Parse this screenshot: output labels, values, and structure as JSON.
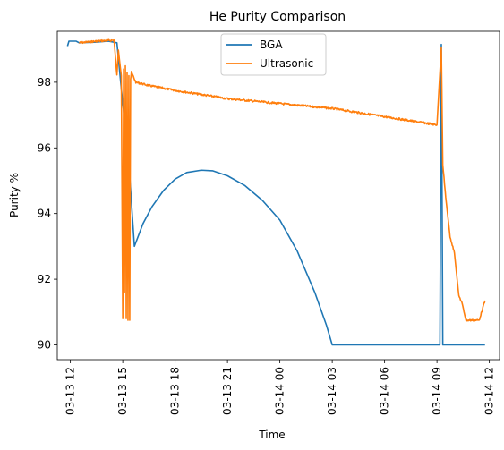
{
  "chart_data": {
    "type": "line",
    "title": "He Purity Comparison",
    "xlabel": "Time",
    "ylabel": "Purity %",
    "xlim": [
      "2024-03-13T11:15",
      "2024-03-14T12:35"
    ],
    "ylim": [
      89.55,
      99.55
    ],
    "x_ticks": [
      "03-13 12",
      "03-13 15",
      "03-13 18",
      "03-13 21",
      "03-14 00",
      "03-14 03",
      "03-14 06",
      "03-14 09",
      "03-14 12"
    ],
    "y_ticks": [
      90,
      92,
      94,
      96,
      98
    ],
    "grid": false,
    "legend_position": "top-center",
    "series": [
      {
        "name": "BGA",
        "color": "#1f77b4",
        "points": [
          [
            "2024-03-13T11:50",
            99.1
          ],
          [
            "2024-03-13T11:55",
            99.25
          ],
          [
            "2024-03-13T12:20",
            99.25
          ],
          [
            "2024-03-13T12:30",
            99.2
          ],
          [
            "2024-03-13T13:30",
            99.22
          ],
          [
            "2024-03-13T14:10",
            99.25
          ],
          [
            "2024-03-13T14:40",
            99.2
          ],
          [
            "2024-03-13T14:55",
            97.8
          ],
          [
            "2024-03-13T15:10",
            96.5
          ],
          [
            "2024-03-13T15:25",
            95.0
          ],
          [
            "2024-03-13T15:40",
            93.0
          ],
          [
            "2024-03-13T16:10",
            93.7
          ],
          [
            "2024-03-13T16:40",
            94.2
          ],
          [
            "2024-03-13T17:20",
            94.7
          ],
          [
            "2024-03-13T18:00",
            95.05
          ],
          [
            "2024-03-13T18:40",
            95.25
          ],
          [
            "2024-03-13T19:30",
            95.32
          ],
          [
            "2024-03-13T20:10",
            95.3
          ],
          [
            "2024-03-13T21:00",
            95.15
          ],
          [
            "2024-03-13T22:00",
            94.85
          ],
          [
            "2024-03-13T23:00",
            94.4
          ],
          [
            "2024-03-14T00:00",
            93.8
          ],
          [
            "2024-03-14T01:00",
            92.85
          ],
          [
            "2024-03-14T02:00",
            91.6
          ],
          [
            "2024-03-14T02:40",
            90.6
          ],
          [
            "2024-03-14T03:00",
            90.0
          ],
          [
            "2024-03-14T09:10",
            90.0
          ],
          [
            "2024-03-14T09:15",
            99.15
          ],
          [
            "2024-03-14T09:20",
            90.0
          ],
          [
            "2024-03-14T11:45",
            90.0
          ]
        ]
      },
      {
        "name": "Ultrasonic",
        "color": "#ff7f0e",
        "points": [
          [
            "2024-03-13T12:30",
            99.2
          ],
          [
            "2024-03-13T13:30",
            99.25
          ],
          [
            "2024-03-13T14:30",
            99.28
          ],
          [
            "2024-03-13T14:40",
            98.2
          ],
          [
            "2024-03-13T14:45",
            99.0
          ],
          [
            "2024-03-13T14:55",
            98.2
          ],
          [
            "2024-03-13T15:00",
            90.8
          ],
          [
            "2024-03-13T15:03",
            98.4
          ],
          [
            "2024-03-13T15:06",
            91.6
          ],
          [
            "2024-03-13T15:09",
            98.5
          ],
          [
            "2024-03-13T15:12",
            90.8
          ],
          [
            "2024-03-13T15:15",
            98.3
          ],
          [
            "2024-03-13T15:18",
            90.75
          ],
          [
            "2024-03-13T15:21",
            98.2
          ],
          [
            "2024-03-13T15:24",
            90.75
          ],
          [
            "2024-03-13T15:27",
            98.1
          ],
          [
            "2024-03-13T15:30",
            98.3
          ],
          [
            "2024-03-13T15:45",
            98.0
          ],
          [
            "2024-03-13T16:30",
            97.9
          ],
          [
            "2024-03-13T18:00",
            97.75
          ],
          [
            "2024-03-13T21:00",
            97.5
          ],
          [
            "2024-03-14T00:00",
            97.35
          ],
          [
            "2024-03-14T03:00",
            97.2
          ],
          [
            "2024-03-14T06:00",
            96.95
          ],
          [
            "2024-03-14T09:00",
            96.7
          ],
          [
            "2024-03-14T09:15",
            99.05
          ],
          [
            "2024-03-14T09:20",
            95.5
          ],
          [
            "2024-03-14T09:30",
            94.5
          ],
          [
            "2024-03-14T09:45",
            93.3
          ],
          [
            "2024-03-14T10:00",
            92.8
          ],
          [
            "2024-03-14T10:15",
            91.5
          ],
          [
            "2024-03-14T10:25",
            91.3
          ],
          [
            "2024-03-14T10:40",
            90.75
          ],
          [
            "2024-03-14T11:25",
            90.75
          ],
          [
            "2024-03-14T11:45",
            91.35
          ]
        ]
      }
    ]
  }
}
